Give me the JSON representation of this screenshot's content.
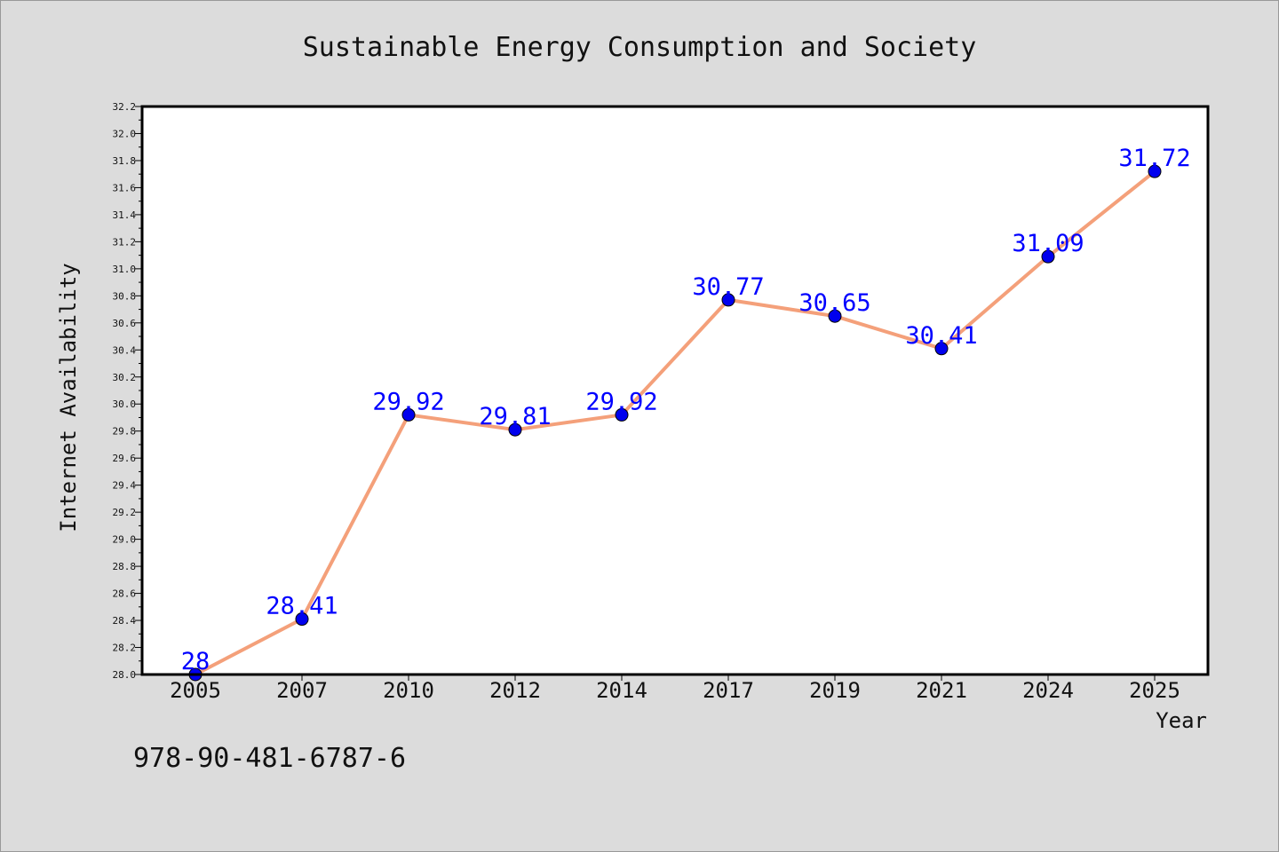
{
  "chart_data": {
    "type": "line",
    "title": "Sustainable Energy Consumption and Society",
    "xlabel": "Year",
    "ylabel": "Internet Availability",
    "categories": [
      "2005",
      "2007",
      "2010",
      "2012",
      "2014",
      "2017",
      "2019",
      "2021",
      "2024",
      "2025"
    ],
    "series": [
      {
        "values": [
          28.0,
          28.41,
          29.92,
          29.81,
          29.92,
          30.77,
          30.65,
          30.41,
          31.09,
          31.72
        ],
        "data_labels": [
          "28",
          "28.41",
          "29.92",
          "29.81",
          "29.92",
          "30.77",
          "30.65",
          "30.41",
          "31.09",
          "31.72"
        ]
      }
    ],
    "ylim": [
      28.0,
      32.2
    ],
    "yticks": [
      "28.0",
      "28.2",
      "28.4",
      "28.6",
      "28.8",
      "29.0",
      "29.2",
      "29.4",
      "29.6",
      "29.8",
      "30.0",
      "30.2",
      "30.4",
      "30.6",
      "30.8",
      "31.0",
      "31.2",
      "31.4",
      "31.6",
      "31.8",
      "32.0",
      "32.2"
    ],
    "grid": false,
    "legend": "none",
    "colors": {
      "line": "#f4a07a",
      "marker": "#0000ee",
      "data_label": "#0000ff",
      "background": "#dcdcdc",
      "plot_background": "#ffffff"
    }
  },
  "footer": {
    "isbn": "978-90-481-6787-6"
  }
}
